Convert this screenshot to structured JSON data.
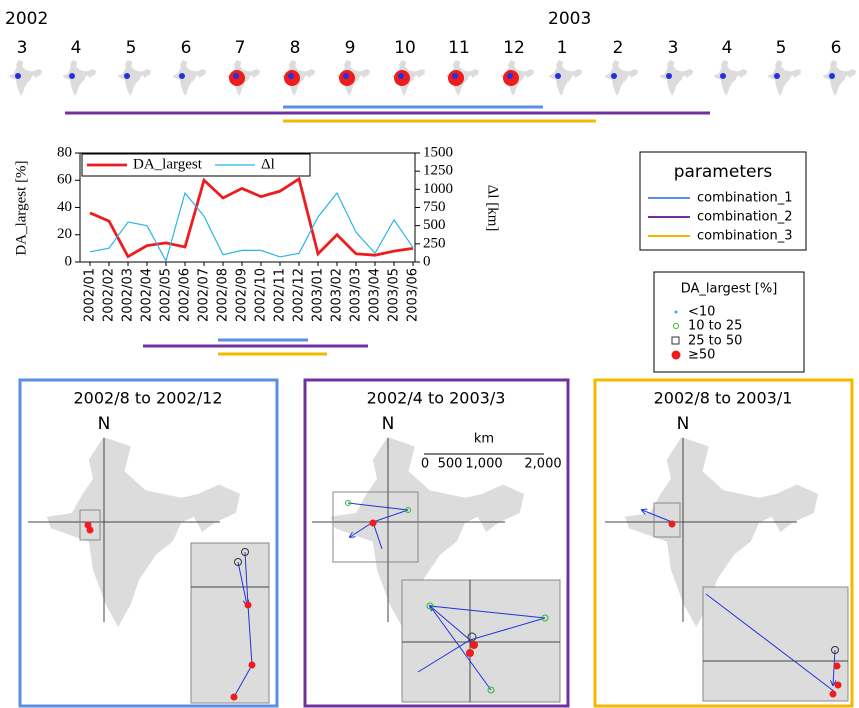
{
  "timeline": {
    "years": [
      "2002",
      "2003"
    ],
    "months": [
      "3",
      "4",
      "5",
      "6",
      "7",
      "8",
      "9",
      "10",
      "11",
      "12",
      "1",
      "2",
      "3",
      "4",
      "5",
      "6"
    ]
  },
  "chart_data": {
    "type": "line",
    "categories": [
      "2002/01",
      "2002/02",
      "2002/03",
      "2002/04",
      "2002/05",
      "2002/06",
      "2002/07",
      "2002/08",
      "2002/09",
      "2002/10",
      "2002/11",
      "2002/12",
      "2003/01",
      "2003/02",
      "2003/03",
      "2003/04",
      "2003/05",
      "2003/06"
    ],
    "series": [
      {
        "name": "DA_largest",
        "color": "#ee1c1c",
        "values": [
          36,
          30,
          4,
          12,
          14,
          11,
          60,
          47,
          54,
          48,
          52,
          61,
          6,
          20,
          6,
          5,
          8,
          10
        ]
      },
      {
        "name": "Δl",
        "color": "#2bb5e8",
        "axis": "y2",
        "values": [
          140,
          190,
          550,
          500,
          15,
          950,
          630,
          100,
          160,
          160,
          70,
          120,
          620,
          950,
          410,
          120,
          580,
          200
        ]
      }
    ],
    "ylabel": "DA_largest [%]",
    "y2label": "Δl [km]",
    "ylim": [
      0,
      80
    ],
    "yticks": [
      0,
      20,
      40,
      60,
      80
    ],
    "y2lim": [
      0,
      1500
    ],
    "y2ticks": [
      0,
      250,
      500,
      750,
      1000,
      1250,
      1500
    ]
  },
  "parameters_legend": {
    "title": "parameters",
    "items": [
      {
        "label": "combination_1",
        "color": "#5b8fe6"
      },
      {
        "label": "combination_2",
        "color": "#7030a0"
      },
      {
        "label": "combination_3",
        "color": "#f5b800"
      }
    ]
  },
  "size_legend": {
    "title": "DA_largest [%]",
    "items": [
      "<10",
      "10 to 25",
      "25 to 50",
      "≥50"
    ]
  },
  "panels": [
    {
      "title": "2002/8 to 2002/12",
      "north": "N"
    },
    {
      "title": "2002/4 to 2003/3",
      "north": "N"
    },
    {
      "title": "2002/8 to 2003/1",
      "north": "N"
    }
  ],
  "scale_bar": {
    "unit": "km",
    "labels": [
      "0",
      "500",
      "1,000",
      "2,000"
    ]
  }
}
